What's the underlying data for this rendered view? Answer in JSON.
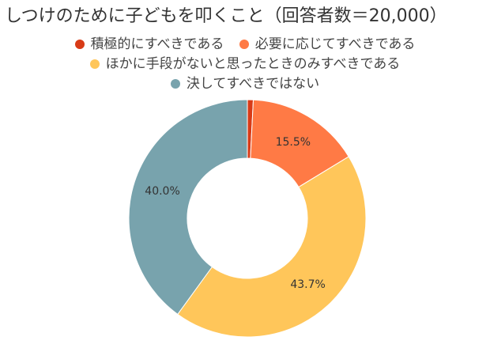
{
  "chart_data": {
    "type": "pie",
    "title": "しつけのために子どもを叩くこと（回答者数＝20,000）",
    "legend_position": "top",
    "categories": [
      "積極的にすべきである",
      "必要に応じてすべきである",
      "ほかに手段がないと思ったときのみすべきである",
      "決してすべきではない"
    ],
    "values": [
      0.8,
      15.5,
      43.7,
      40.0
    ],
    "data_labels": [
      "",
      "15.5%",
      "43.7%",
      "40.0%"
    ],
    "colors": [
      "#D83B17",
      "#FF7A45",
      "#FFC65A",
      "#78A3AD"
    ],
    "donut": true
  }
}
